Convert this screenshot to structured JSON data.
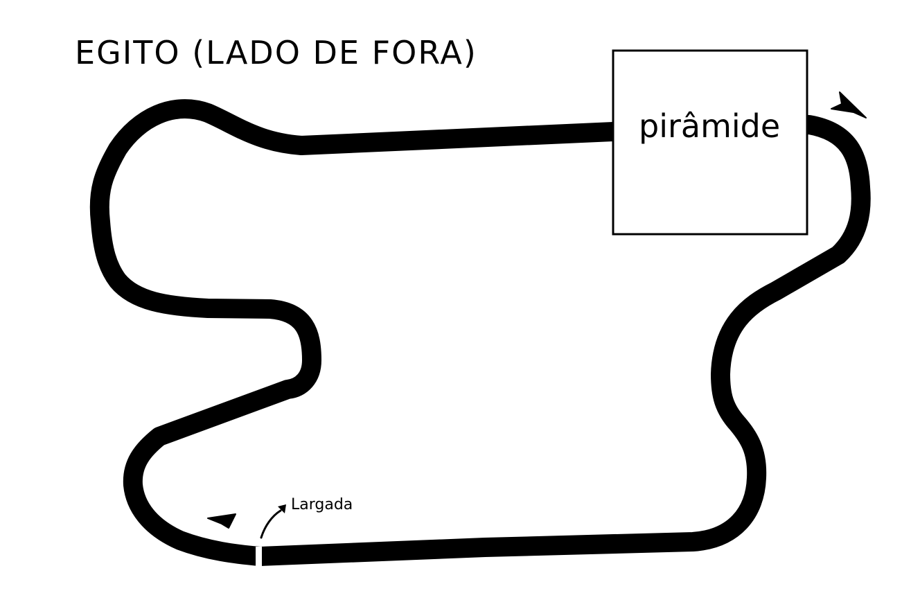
{
  "title": "EGITO (LADO DE FORA)",
  "pyramid": {
    "label": "pirâmide"
  },
  "start": {
    "label": "Largada"
  },
  "colors": {
    "track": "#000000",
    "background": "#ffffff",
    "start_line": "#ffffff"
  },
  "icons": [
    "direction-arrow-icon",
    "start-pointer-icon"
  ]
}
